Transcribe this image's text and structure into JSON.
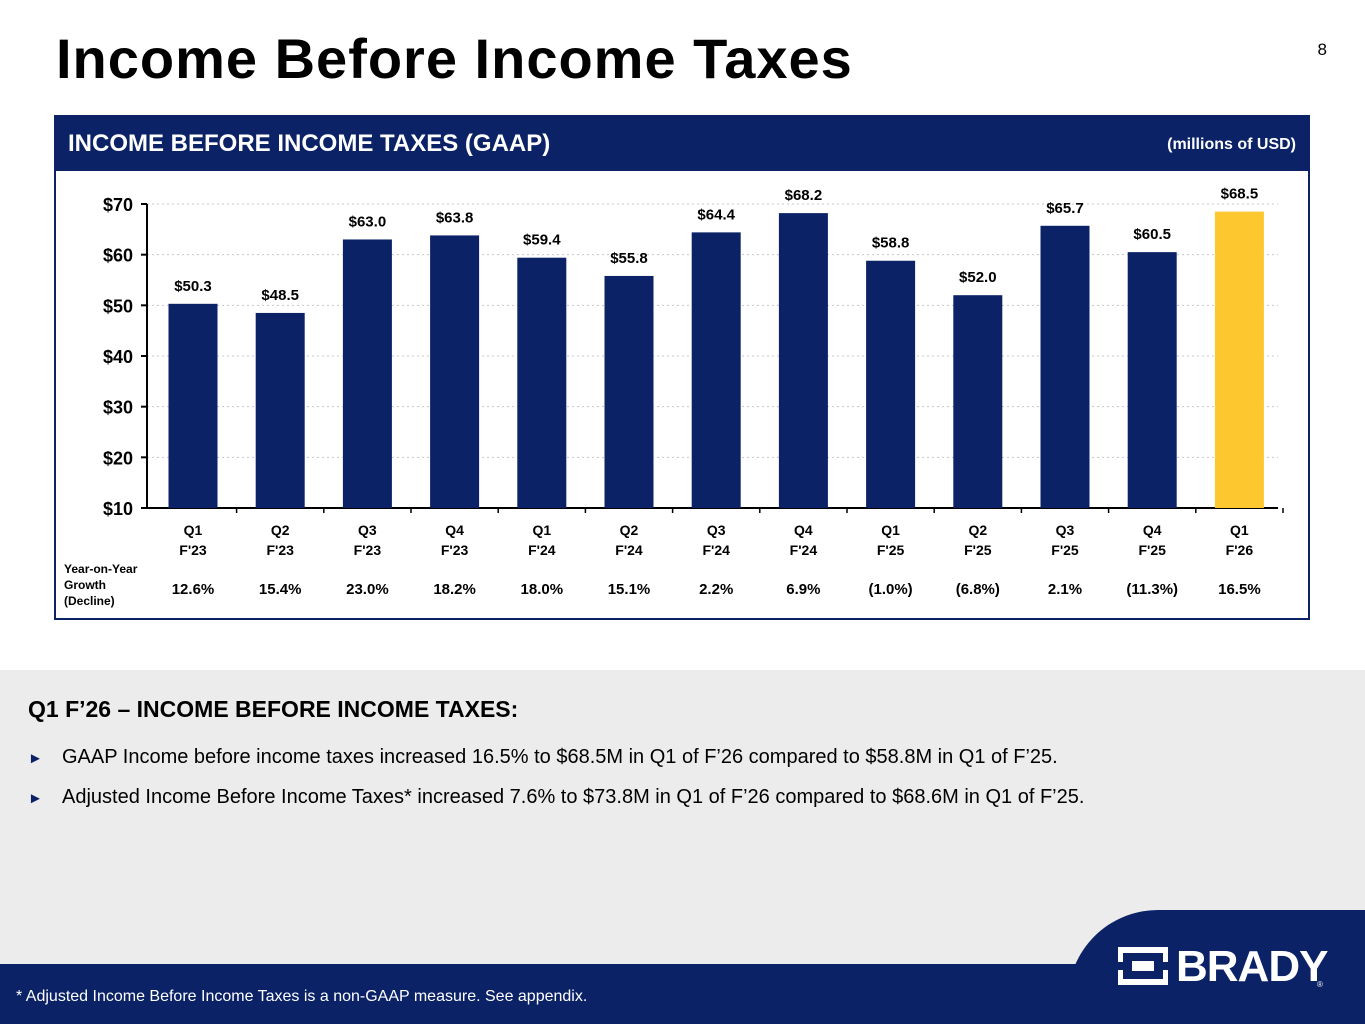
{
  "slide": {
    "title": "Income Before Income Taxes",
    "page_number": "8"
  },
  "panel": {
    "title": "INCOME BEFORE INCOME TAXES (GAAP)",
    "units": "(millions of USD)",
    "growth_label_lines": [
      "Year-on-Year",
      "Growth",
      "(Decline)"
    ]
  },
  "chart_data": {
    "type": "bar",
    "categories": [
      [
        "Q1",
        "F'23"
      ],
      [
        "Q2",
        "F'23"
      ],
      [
        "Q3",
        "F'23"
      ],
      [
        "Q4",
        "F'23"
      ],
      [
        "Q1",
        "F'24"
      ],
      [
        "Q2",
        "F'24"
      ],
      [
        "Q3",
        "F'24"
      ],
      [
        "Q4",
        "F'24"
      ],
      [
        "Q1",
        "F'25"
      ],
      [
        "Q2",
        "F'25"
      ],
      [
        "Q3",
        "F'25"
      ],
      [
        "Q4",
        "F'25"
      ],
      [
        "Q1",
        "F'26"
      ]
    ],
    "values": [
      50.3,
      48.5,
      63.0,
      63.8,
      59.4,
      55.8,
      64.4,
      68.2,
      58.8,
      52.0,
      65.7,
      60.5,
      68.5
    ],
    "value_labels": [
      "$50.3",
      "$48.5",
      "$63.0",
      "$63.8",
      "$59.4",
      "$55.8",
      "$64.4",
      "$68.2",
      "$58.8",
      "$52.0",
      "$65.7",
      "$60.5",
      "$68.5"
    ],
    "growth": [
      "12.6%",
      "15.4%",
      "23.0%",
      "18.2%",
      "18.0%",
      "15.1%",
      "2.2%",
      "6.9%",
      "(1.0%)",
      "(6.8%)",
      "2.1%",
      "(11.3%)",
      "16.5%"
    ],
    "ylim": [
      10,
      70
    ],
    "yticks": [
      10,
      20,
      30,
      40,
      50,
      60,
      70
    ],
    "ytick_labels": [
      "$10",
      "$20",
      "$30",
      "$40",
      "$50",
      "$60",
      "$70"
    ],
    "grid": true,
    "colors": {
      "bar": "#0b2266",
      "highlight": "#fcc72f",
      "gridline": "#c8c8c8"
    },
    "highlight_index": 12,
    "xlabel": "",
    "ylabel": ""
  },
  "summary": {
    "heading": "Q1 F’26 – INCOME BEFORE INCOME TAXES:",
    "bullet_icon": "triangle-right-icon",
    "bullets": [
      "GAAP Income before income taxes increased 16.5% to $68.5M in Q1 of F’26 compared to $58.8M in Q1 of F’25.",
      "Adjusted Income Before Income Taxes* increased 7.6% to $73.8M in Q1 of F’26 compared to $68.6M in Q1 of F’25."
    ]
  },
  "footer": {
    "note": "* Adjusted Income Before Income Taxes is a non-GAAP measure.  See appendix.",
    "logo_text": "BRADY",
    "logo_mark": "®"
  },
  "colors": {
    "brand_navy": "#0b2266",
    "bottom_bg": "#ececec"
  }
}
